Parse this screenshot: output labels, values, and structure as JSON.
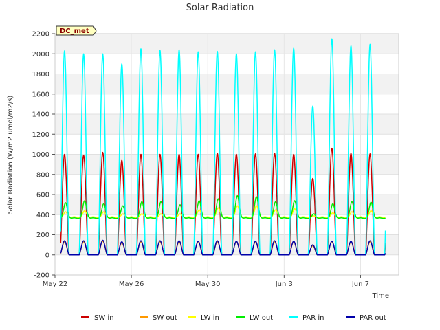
{
  "chart_data": {
    "type": "line",
    "title": "Solar Radiation",
    "xlabel": "Time",
    "ylabel": "Solar Radiation (W/m2 umol/m2/s)",
    "badge": "DC_met",
    "ylim": [
      -200,
      2200
    ],
    "xlim": [
      0,
      18
    ],
    "y_ticks": [
      -200,
      0,
      200,
      400,
      600,
      800,
      1000,
      1200,
      1400,
      1600,
      1800,
      2000,
      2200
    ],
    "x_ticks": [
      {
        "day": 0,
        "label": "May 22"
      },
      {
        "day": 4,
        "label": "May 26"
      },
      {
        "day": 8,
        "label": "May 30"
      },
      {
        "day": 12,
        "label": "Jun 3"
      },
      {
        "day": 16,
        "label": "Jun 7"
      }
    ],
    "grid": true,
    "legend_position": "bottom",
    "day_start": 0.3,
    "day_end": 17.3,
    "series": [
      {
        "name": "SW in",
        "color": "#cc0000",
        "kind": "peak",
        "base": 0,
        "peaks": [
          1000,
          990,
          1020,
          940,
          1000,
          1000,
          1000,
          1000,
          1010,
          1000,
          1005,
          1010,
          1000,
          760,
          1060,
          1010,
          1005
        ]
      },
      {
        "name": "SW out",
        "color": "#ff9900",
        "kind": "peak",
        "base": 0,
        "peaks": [
          130,
          130,
          135,
          120,
          130,
          130,
          130,
          130,
          130,
          130,
          130,
          130,
          130,
          90,
          130,
          130,
          130
        ]
      },
      {
        "name": "LW in",
        "color": "#ffff00",
        "kind": "wave",
        "base": 380,
        "peaks": [
          440,
          450,
          440,
          420,
          420,
          420,
          420,
          460,
          480,
          500,
          500,
          460,
          470,
          400,
          430,
          440,
          450
        ]
      },
      {
        "name": "LW out",
        "color": "#00ee00",
        "kind": "wave",
        "base": 370,
        "peaks": [
          530,
          550,
          520,
          500,
          540,
          540,
          510,
          550,
          570,
          600,
          590,
          540,
          550,
          420,
          520,
          540,
          535
        ]
      },
      {
        "name": "PAR in",
        "color": "#00ffff",
        "kind": "peak",
        "base": 0,
        "peaks": [
          2030,
          2000,
          2000,
          1900,
          2050,
          2035,
          2040,
          2020,
          2025,
          2000,
          2020,
          2040,
          2055,
          1480,
          2150,
          2080,
          2095
        ]
      },
      {
        "name": "PAR out",
        "color": "#0000aa",
        "kind": "peak",
        "base": 0,
        "peaks": [
          140,
          140,
          145,
          130,
          140,
          140,
          140,
          135,
          140,
          135,
          135,
          140,
          135,
          100,
          135,
          135,
          140
        ]
      }
    ]
  }
}
